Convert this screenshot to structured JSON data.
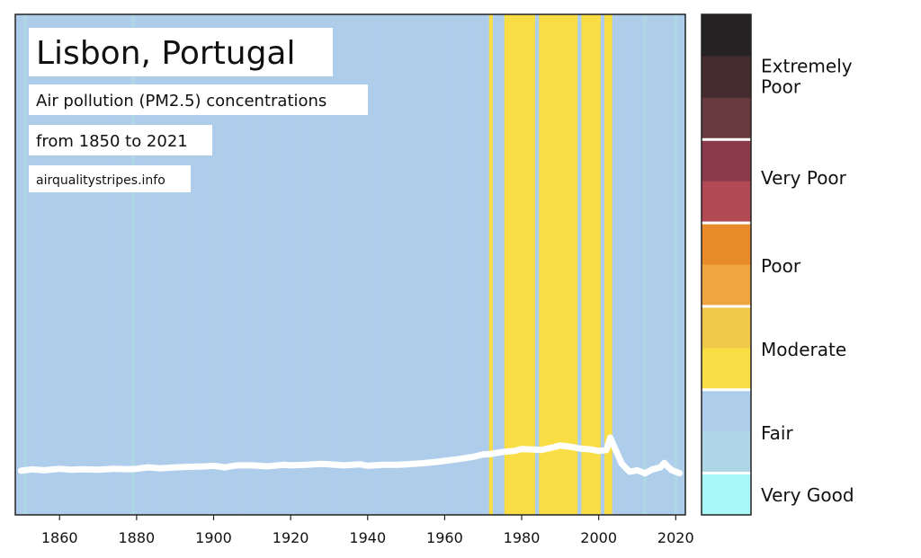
{
  "chart_data": {
    "type": "line",
    "title": "Lisbon, Portugal",
    "subtitle_lines": [
      "Air pollution (PM2.5) concentrations",
      "from 1850 to 2021"
    ],
    "source": "airqualitystripes.info",
    "xlim": [
      1848.5,
      2022.5
    ],
    "ylim": [
      0,
      101
    ],
    "x_ticks": [
      1860,
      1880,
      1900,
      1920,
      1940,
      1960,
      1980,
      2000,
      2020
    ],
    "stripes": {
      "default_category": "Fair",
      "moderate_years": [
        1972,
        1976,
        1977,
        1978,
        1979,
        1980,
        1981,
        1982,
        1983,
        1985,
        1986,
        1987,
        1988,
        1989,
        1990,
        1991,
        1992,
        1993,
        1994,
        1996,
        1997,
        1998,
        1999,
        2000,
        2002,
        2003
      ],
      "fair_light_years": [
        1851,
        1879,
        2012,
        2020
      ]
    },
    "series": [
      {
        "name": "PM2.5",
        "color": "#ffffff",
        "x": [
          1850,
          1853,
          1856,
          1860,
          1863,
          1866,
          1870,
          1874,
          1878,
          1880,
          1883,
          1886,
          1890,
          1894,
          1898,
          1900,
          1903,
          1906,
          1910,
          1914,
          1918,
          1920,
          1924,
          1928,
          1930,
          1934,
          1938,
          1940,
          1944,
          1948,
          1950,
          1954,
          1958,
          1960,
          1964,
          1968,
          1970,
          1972,
          1975,
          1978,
          1980,
          1983,
          1985,
          1988,
          1990,
          1993,
          1995,
          1998,
          2000,
          2002,
          2003,
          2004,
          2006,
          2008,
          2010,
          2012,
          2014,
          2016,
          2017,
          2018,
          2019,
          2021
        ],
        "values": [
          8.9,
          9.2,
          9.0,
          9.3,
          9.1,
          9.2,
          9.1,
          9.3,
          9.2,
          9.3,
          9.6,
          9.4,
          9.6,
          9.7,
          9.8,
          9.9,
          9.6,
          10.0,
          10.0,
          9.8,
          10.1,
          10.0,
          10.1,
          10.3,
          10.2,
          10.0,
          10.2,
          9.9,
          10.1,
          10.1,
          10.2,
          10.4,
          10.7,
          10.9,
          11.3,
          11.8,
          12.2,
          12.3,
          12.7,
          12.9,
          13.3,
          13.2,
          13.1,
          13.6,
          14.0,
          13.7,
          13.4,
          13.2,
          12.9,
          13.1,
          15.6,
          13.8,
          10.3,
          8.7,
          9.0,
          8.4,
          9.2,
          9.6,
          10.5,
          9.7,
          9.0,
          8.4
        ]
      }
    ],
    "colorbar": {
      "colors": [
        "#252223",
        "#442c2e",
        "#683a3d",
        "#8a3a48",
        "#b24a56",
        "#e88a2a",
        "#f0a640",
        "#f0c84a",
        "#f8de44",
        "#aecdeb",
        "#aed6e6",
        "#a8f8fa"
      ],
      "categories": [
        {
          "label": "Extremely Poor",
          "lines": [
            "Extremely",
            "Poor"
          ]
        },
        {
          "label": "Very Poor",
          "lines": [
            "Very Poor"
          ]
        },
        {
          "label": "Poor",
          "lines": [
            "Poor"
          ]
        },
        {
          "label": "Moderate",
          "lines": [
            "Moderate"
          ]
        },
        {
          "label": "Fair",
          "lines": [
            "Fair"
          ]
        },
        {
          "label": "Very Good",
          "lines": [
            "Very Good"
          ]
        }
      ]
    }
  }
}
